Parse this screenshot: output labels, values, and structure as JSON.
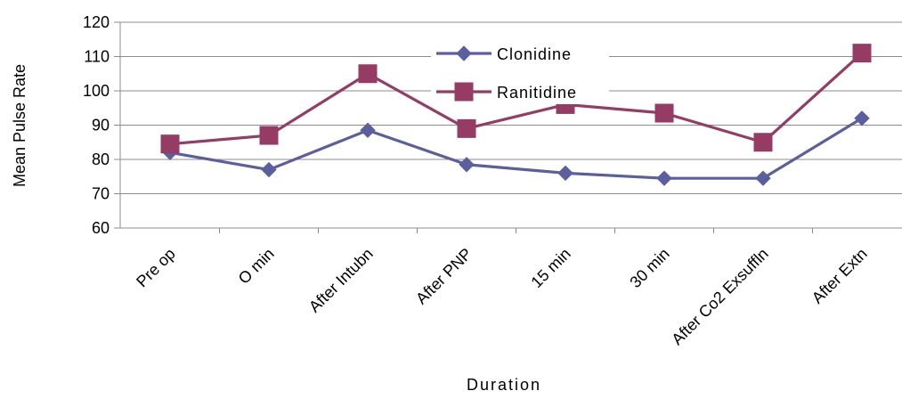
{
  "chart_data": {
    "type": "line",
    "title": "",
    "xlabel": "Duration",
    "ylabel": "Mean Pulse Rate",
    "ylim": [
      60,
      120
    ],
    "yticks": [
      60,
      70,
      80,
      90,
      100,
      110,
      120
    ],
    "grid": true,
    "legend": "top-center",
    "categories": [
      "Pre op",
      "O min",
      "After Intubn",
      "After PNP",
      "15 min",
      "30 min",
      "After Co2 Exsuffln",
      "After Extn"
    ],
    "series": [
      {
        "name": "Clonidine",
        "color": "#5B5FA0",
        "marker": "diamond",
        "values": [
          82,
          77,
          88.5,
          78.5,
          76,
          74.5,
          74.5,
          92
        ]
      },
      {
        "name": "Ranitidine",
        "color": "#953B64",
        "marker": "square",
        "values": [
          84.5,
          87,
          105,
          89,
          96,
          93.5,
          85,
          111
        ]
      }
    ]
  }
}
